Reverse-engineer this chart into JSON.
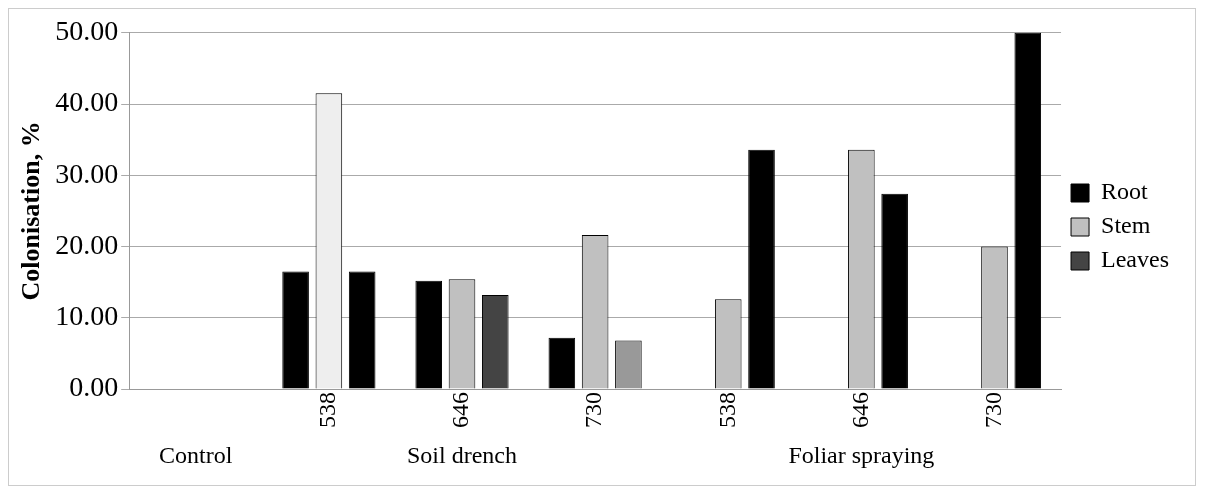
{
  "chart_data": {
    "type": "bar",
    "ylabel": "Colonisation, %",
    "categories": [
      null,
      "538",
      "646",
      "730",
      "538",
      "646",
      "730"
    ],
    "series": [
      {
        "name": "Root",
        "color": "#000000",
        "values": [
          0,
          16.5,
          15.2,
          7.2,
          0,
          0,
          0
        ]
      },
      {
        "name": "Stem",
        "color": "#c0c0c0",
        "colors": [
          "#c0c0c0",
          "#eeeeee",
          "#c0c0c0",
          "#c0c0c0",
          "#c0c0c0",
          "#c0c0c0",
          "#c0c0c0"
        ],
        "values": [
          0,
          41.5,
          15.4,
          21.6,
          12.6,
          33.6,
          20
        ]
      },
      {
        "name": "Leaves",
        "color": "#444444",
        "colors": [
          "#000000",
          "#000000",
          "#444444",
          "#999999",
          "#000000",
          "#000000",
          "#000000"
        ],
        "values": [
          0,
          16.5,
          13.2,
          6.8,
          33.6,
          27.4,
          50
        ]
      }
    ],
    "ylim": [
      0,
      50
    ],
    "yticks": [
      {
        "value": 0,
        "label": "0.00"
      },
      {
        "value": 10,
        "label": "10.00"
      },
      {
        "value": 20,
        "label": "20.00"
      },
      {
        "value": 30,
        "label": "30.00"
      },
      {
        "value": 40,
        "label": "40.00"
      },
      {
        "value": 50,
        "label": "50.00"
      }
    ],
    "grid": "y",
    "legend": "right",
    "annotations": [
      "Control",
      "Soil drench",
      "Foliar spraying"
    ]
  }
}
